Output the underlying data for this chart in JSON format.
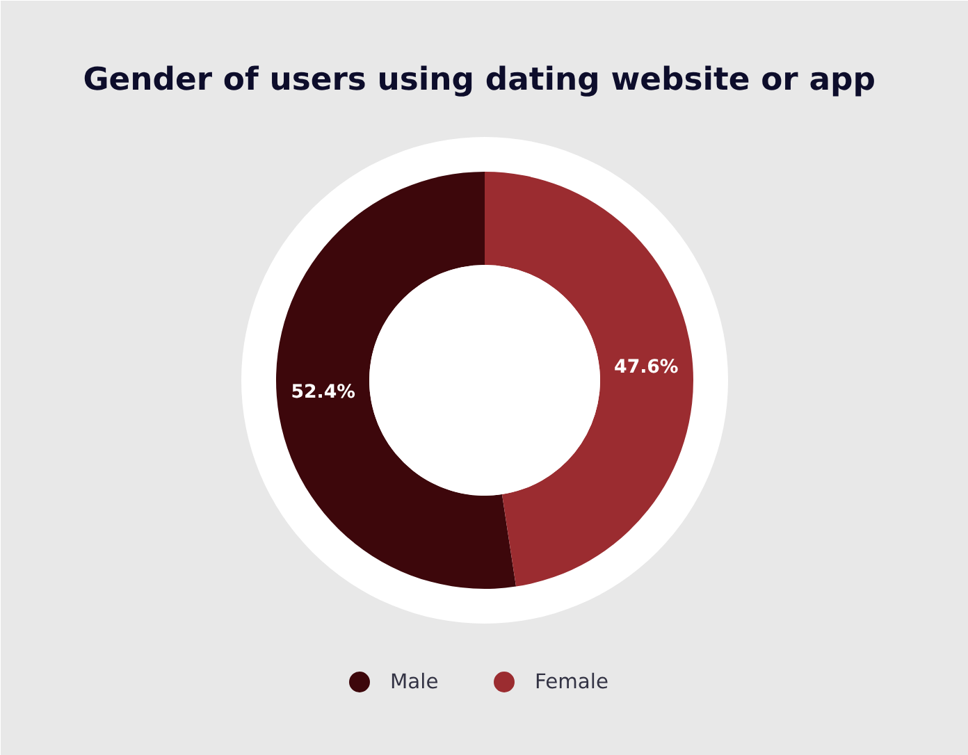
{
  "chart_data": {
    "type": "donut",
    "title": "Gender of users using  dating website or app",
    "categories": [
      "Male",
      "Female"
    ],
    "values": [
      52.4,
      47.6
    ],
    "colors": [
      "#3d070b",
      "#9b2c30"
    ],
    "value_labels": [
      "52.4%",
      "47.6%"
    ],
    "legend": "bottom"
  }
}
